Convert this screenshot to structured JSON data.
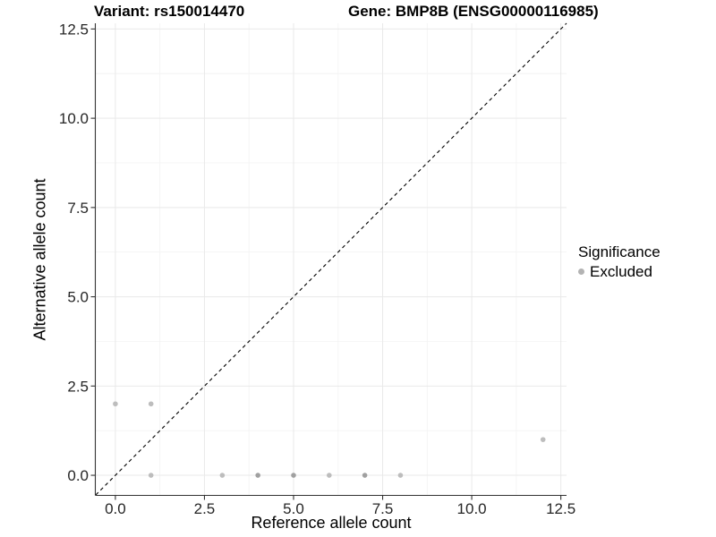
{
  "chart_data": {
    "type": "scatter",
    "title_left": "Variant: rs150014470",
    "title_right": "Gene: BMP8B (ENSG00000116985)",
    "xlabel": "Reference allele count",
    "ylabel": "Alternative allele count",
    "xlim": [
      -0.55,
      12.66
    ],
    "ylim": [
      -0.55,
      12.66
    ],
    "major_ticks": {
      "values": [
        0,
        2.5,
        5,
        7.5,
        10,
        12.5
      ],
      "labels": [
        "0.0",
        "2.5",
        "5.0",
        "7.5",
        "10.0",
        "12.5"
      ]
    },
    "minor_gridlines": [
      1.25,
      3.75,
      6.25,
      8.75,
      11.25
    ],
    "grid": "on",
    "legend_position": "right",
    "legend": {
      "title": "Significance",
      "entries": [
        {
          "label": "Excluded",
          "key_color": "#b3b3b3"
        }
      ]
    },
    "series": [
      {
        "name": "Excluded",
        "marker": "circle",
        "points": [
          {
            "x": 0,
            "y": 2,
            "shade": "light"
          },
          {
            "x": 1,
            "y": 2,
            "shade": "light"
          },
          {
            "x": 1,
            "y": 0,
            "shade": "light"
          },
          {
            "x": 3,
            "y": 0,
            "shade": "light"
          },
          {
            "x": 4,
            "y": 0,
            "shade": "dark"
          },
          {
            "x": 5,
            "y": 0,
            "shade": "dark"
          },
          {
            "x": 6,
            "y": 0,
            "shade": "light"
          },
          {
            "x": 7,
            "y": 0,
            "shade": "dark"
          },
          {
            "x": 8,
            "y": 0,
            "shade": "light"
          },
          {
            "x": 12,
            "y": 1,
            "shade": "light"
          }
        ]
      }
    ],
    "reference_line": {
      "kind": "identity",
      "equation": "y = x",
      "style": "dashed",
      "color": "#000000"
    },
    "colors": {
      "point_light": "#bdbdbd",
      "point_dark": "#a0a0a0",
      "grid_major": "#e9e9e9",
      "grid_minor": "#f4f4f4",
      "axis_line": "#333333",
      "tick_text": "#262626",
      "title_text": "#000000",
      "background": "#ffffff"
    }
  }
}
